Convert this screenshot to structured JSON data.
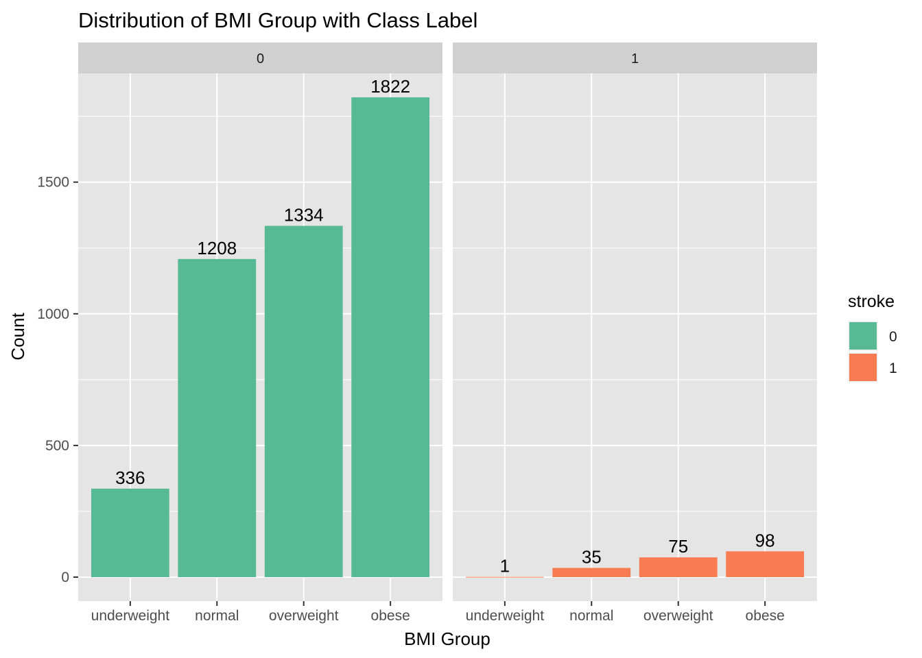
{
  "chart_data": {
    "type": "bar",
    "title": "Distribution of BMI Group with Class Label",
    "xlabel": "BMI Group",
    "ylabel": "Count",
    "categories": [
      "underweight",
      "normal",
      "overweight",
      "obese"
    ],
    "ylim": [
      -91.1,
      1913.1
    ],
    "yticks": [
      0,
      500,
      1000,
      1500
    ],
    "grid": true,
    "facets": [
      {
        "strip": "0",
        "stroke": "0",
        "values": [
          336,
          1208,
          1334,
          1822
        ]
      },
      {
        "strip": "1",
        "stroke": "1",
        "values": [
          1,
          35,
          75,
          98
        ]
      }
    ],
    "legend": {
      "title": "stroke",
      "position": "right",
      "items": [
        {
          "label": "0",
          "color": "#57BA94"
        },
        {
          "label": "1",
          "color": "#F97B52"
        }
      ]
    },
    "colors": {
      "0": "#57BA94",
      "1": "#F97B52",
      "panel": "#E5E5E5",
      "strip": "#D0D0D0",
      "grid": "#FFFFFF"
    }
  }
}
